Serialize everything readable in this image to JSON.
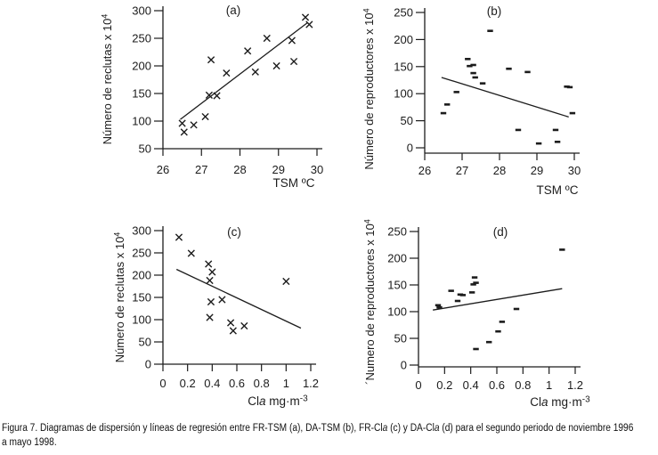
{
  "figure": {
    "colors": {
      "ink": "#1c1c1c",
      "background": "#ffffff"
    },
    "caption": {
      "seg1": "Figura 7. Diagramas de dispersión y líneas de regresión entre FR-TSM (a), DA-TSM (b), FR-Cl",
      "ital1": "a",
      "seg2": " (c) y DA-Cl",
      "ital2": "a",
      "seg3": " (d) para el segundo periodo de noviembre 1996",
      "line2": "a mayo 1998."
    }
  },
  "chart_data": [
    {
      "id": "a",
      "type": "scatter",
      "marker": "x",
      "title": "(a)",
      "xlabel_text": "TSM  ºC",
      "ylabel_text": "Número de reclutas x 10⁴",
      "xlabel_parts": [
        {
          "t": "TSM  ºC"
        }
      ],
      "ylabel_parts": [
        {
          "t": "Número de reclutas x 10"
        },
        {
          "t": "4",
          "sup": true
        }
      ],
      "xlim": [
        26,
        30
      ],
      "ylim": [
        50,
        300
      ],
      "grid": false,
      "legend": null,
      "xticks": [
        {
          "v": 26,
          "l": "26"
        },
        {
          "v": 27,
          "l": "27"
        },
        {
          "v": 28,
          "l": "28"
        },
        {
          "v": 29,
          "l": "29"
        },
        {
          "v": 30,
          "l": "30"
        }
      ],
      "yticks": [
        {
          "v": 300,
          "l": "300"
        },
        {
          "v": 250,
          "l": "250"
        },
        {
          "v": 200,
          "l": "200"
        },
        {
          "v": 150,
          "l": "150"
        },
        {
          "v": 100,
          "l": "100"
        },
        {
          "v": 50,
          "l": "50"
        }
      ],
      "points": [
        [
          26.5,
          96
        ],
        [
          26.55,
          80
        ],
        [
          26.8,
          93
        ],
        [
          27.1,
          108
        ],
        [
          27.2,
          147
        ],
        [
          27.25,
          211
        ],
        [
          27.4,
          146
        ],
        [
          27.65,
          187
        ],
        [
          28.2,
          227
        ],
        [
          28.4,
          189
        ],
        [
          28.7,
          250
        ],
        [
          28.95,
          200
        ],
        [
          29.35,
          246
        ],
        [
          29.4,
          208
        ],
        [
          29.7,
          288
        ],
        [
          29.8,
          275
        ]
      ],
      "regression": {
        "x1": 26.45,
        "y1": 103,
        "x2": 29.75,
        "y2": 278
      }
    },
    {
      "id": "b",
      "type": "scatter",
      "marker": "dash",
      "title": "(b)",
      "xlabel_text": "TSM  ºC",
      "ylabel_text": "Número de reproductores x 10⁴",
      "xlabel_parts": [
        {
          "t": "TSM  ºC"
        }
      ],
      "ylabel_parts": [
        {
          "t": "Número de reproductores x 10"
        },
        {
          "t": "4",
          "sup": true
        }
      ],
      "xlim": [
        26,
        30
      ],
      "ylim": [
        0,
        250
      ],
      "grid": false,
      "legend": null,
      "xticks": [
        {
          "v": 26,
          "l": "26"
        },
        {
          "v": 27,
          "l": "27"
        },
        {
          "v": 28,
          "l": "28"
        },
        {
          "v": 29,
          "l": "29"
        },
        {
          "v": 30,
          "l": "30"
        }
      ],
      "yticks": [
        {
          "v": 250,
          "l": "250"
        },
        {
          "v": 200,
          "l": "200"
        },
        {
          "v": 150,
          "l": "150"
        },
        {
          "v": 100,
          "l": "100"
        },
        {
          "v": 50,
          "l": "50"
        },
        {
          "v": 0,
          "l": "0"
        }
      ],
      "points": [
        [
          26.5,
          64
        ],
        [
          26.6,
          80
        ],
        [
          26.85,
          103
        ],
        [
          27.15,
          164
        ],
        [
          27.2,
          151
        ],
        [
          27.3,
          153
        ],
        [
          27.3,
          138
        ],
        [
          27.35,
          130
        ],
        [
          27.55,
          119
        ],
        [
          27.75,
          216
        ],
        [
          28.25,
          146
        ],
        [
          28.5,
          33
        ],
        [
          28.75,
          140
        ],
        [
          29.05,
          8
        ],
        [
          29.5,
          33
        ],
        [
          29.55,
          11
        ],
        [
          29.8,
          113
        ],
        [
          29.88,
          112
        ],
        [
          29.95,
          64
        ]
      ],
      "regression": {
        "x1": 26.45,
        "y1": 130,
        "x2": 29.85,
        "y2": 57
      }
    },
    {
      "id": "c",
      "type": "scatter",
      "marker": "x",
      "title": "(c)",
      "xlabel_text": "Cla mg·m⁻³",
      "ylabel_text": "Número de reclutas x 10⁴",
      "xlabel_parts": [
        {
          "t": "Cl"
        },
        {
          "t": "a",
          "i": true
        },
        {
          "t": "  mg·m"
        },
        {
          "t": "-3",
          "sup": true
        }
      ],
      "ylabel_parts": [
        {
          "t": "Número de reclutas x 10"
        },
        {
          "t": "4",
          "sup": true
        }
      ],
      "xlim": [
        0,
        1.2
      ],
      "ylim": [
        0,
        300
      ],
      "grid": false,
      "legend": null,
      "xticks": [
        {
          "v": 0,
          "l": "0"
        },
        {
          "v": 0.2,
          "l": "0.2"
        },
        {
          "v": 0.4,
          "l": "0.4"
        },
        {
          "v": 0.6,
          "l": "0.6"
        },
        {
          "v": 0.8,
          "l": "0.8"
        },
        {
          "v": 1,
          "l": "1"
        },
        {
          "v": 1.2,
          "l": "1.2"
        }
      ],
      "yticks": [
        {
          "v": 300,
          "l": "300"
        },
        {
          "v": 250,
          "l": "250"
        },
        {
          "v": 200,
          "l": "200"
        },
        {
          "v": 150,
          "l": "150"
        },
        {
          "v": 100,
          "l": "100"
        },
        {
          "v": 50,
          "l": "50"
        },
        {
          "v": 0,
          "l": "0"
        }
      ],
      "points": [
        [
          0.13,
          285
        ],
        [
          0.23,
          249
        ],
        [
          0.37,
          225
        ],
        [
          0.4,
          207
        ],
        [
          0.38,
          188
        ],
        [
          0.39,
          140
        ],
        [
          0.48,
          145
        ],
        [
          0.38,
          105
        ],
        [
          0.55,
          93
        ],
        [
          0.57,
          75
        ],
        [
          0.66,
          86
        ],
        [
          1.0,
          186
        ]
      ],
      "regression": {
        "x1": 0.11,
        "y1": 213,
        "x2": 1.12,
        "y2": 81
      }
    },
    {
      "id": "d",
      "type": "scatter",
      "marker": "dash",
      "title": "(d)",
      "xlabel_text": "Cla mg·m⁻³",
      "ylabel_text": "´Numero de reproductores x 10⁴",
      "xlabel_parts": [
        {
          "t": "Cl"
        },
        {
          "t": "a",
          "i": true
        },
        {
          "t": " mg·m"
        },
        {
          "t": "-3",
          "sup": true
        }
      ],
      "ylabel_parts": [
        {
          "t": "´Numero de reproductores x 10"
        },
        {
          "t": "4",
          "sup": true
        }
      ],
      "xlim": [
        0,
        1.2
      ],
      "ylim": [
        0,
        250
      ],
      "grid": false,
      "legend": null,
      "xticks": [
        {
          "v": 0,
          "l": "0"
        },
        {
          "v": 0.2,
          "l": "0.2"
        },
        {
          "v": 0.4,
          "l": "0.4"
        },
        {
          "v": 0.6,
          "l": "0.6"
        },
        {
          "v": 0.8,
          "l": "0.8"
        },
        {
          "v": 1,
          "l": "1"
        },
        {
          "v": 1.2,
          "l": "1.2"
        }
      ],
      "yticks": [
        {
          "v": 250,
          "l": "250"
        },
        {
          "v": 200,
          "l": "200"
        },
        {
          "v": 150,
          "l": "150"
        },
        {
          "v": 100,
          "l": "100"
        },
        {
          "v": 50,
          "l": "50"
        },
        {
          "v": 0,
          "l": "0"
        }
      ],
      "points": [
        [
          0.15,
          112
        ],
        [
          0.16,
          108
        ],
        [
          0.25,
          139
        ],
        [
          0.3,
          120
        ],
        [
          0.32,
          132
        ],
        [
          0.34,
          131
        ],
        [
          0.41,
          136
        ],
        [
          0.42,
          151
        ],
        [
          0.44,
          154
        ],
        [
          0.43,
          164
        ],
        [
          0.44,
          30
        ],
        [
          0.54,
          43
        ],
        [
          0.61,
          63
        ],
        [
          0.64,
          81
        ],
        [
          0.75,
          105
        ],
        [
          1.1,
          216
        ]
      ],
      "regression": {
        "x1": 0.11,
        "y1": 103,
        "x2": 1.1,
        "y2": 143
      }
    }
  ]
}
